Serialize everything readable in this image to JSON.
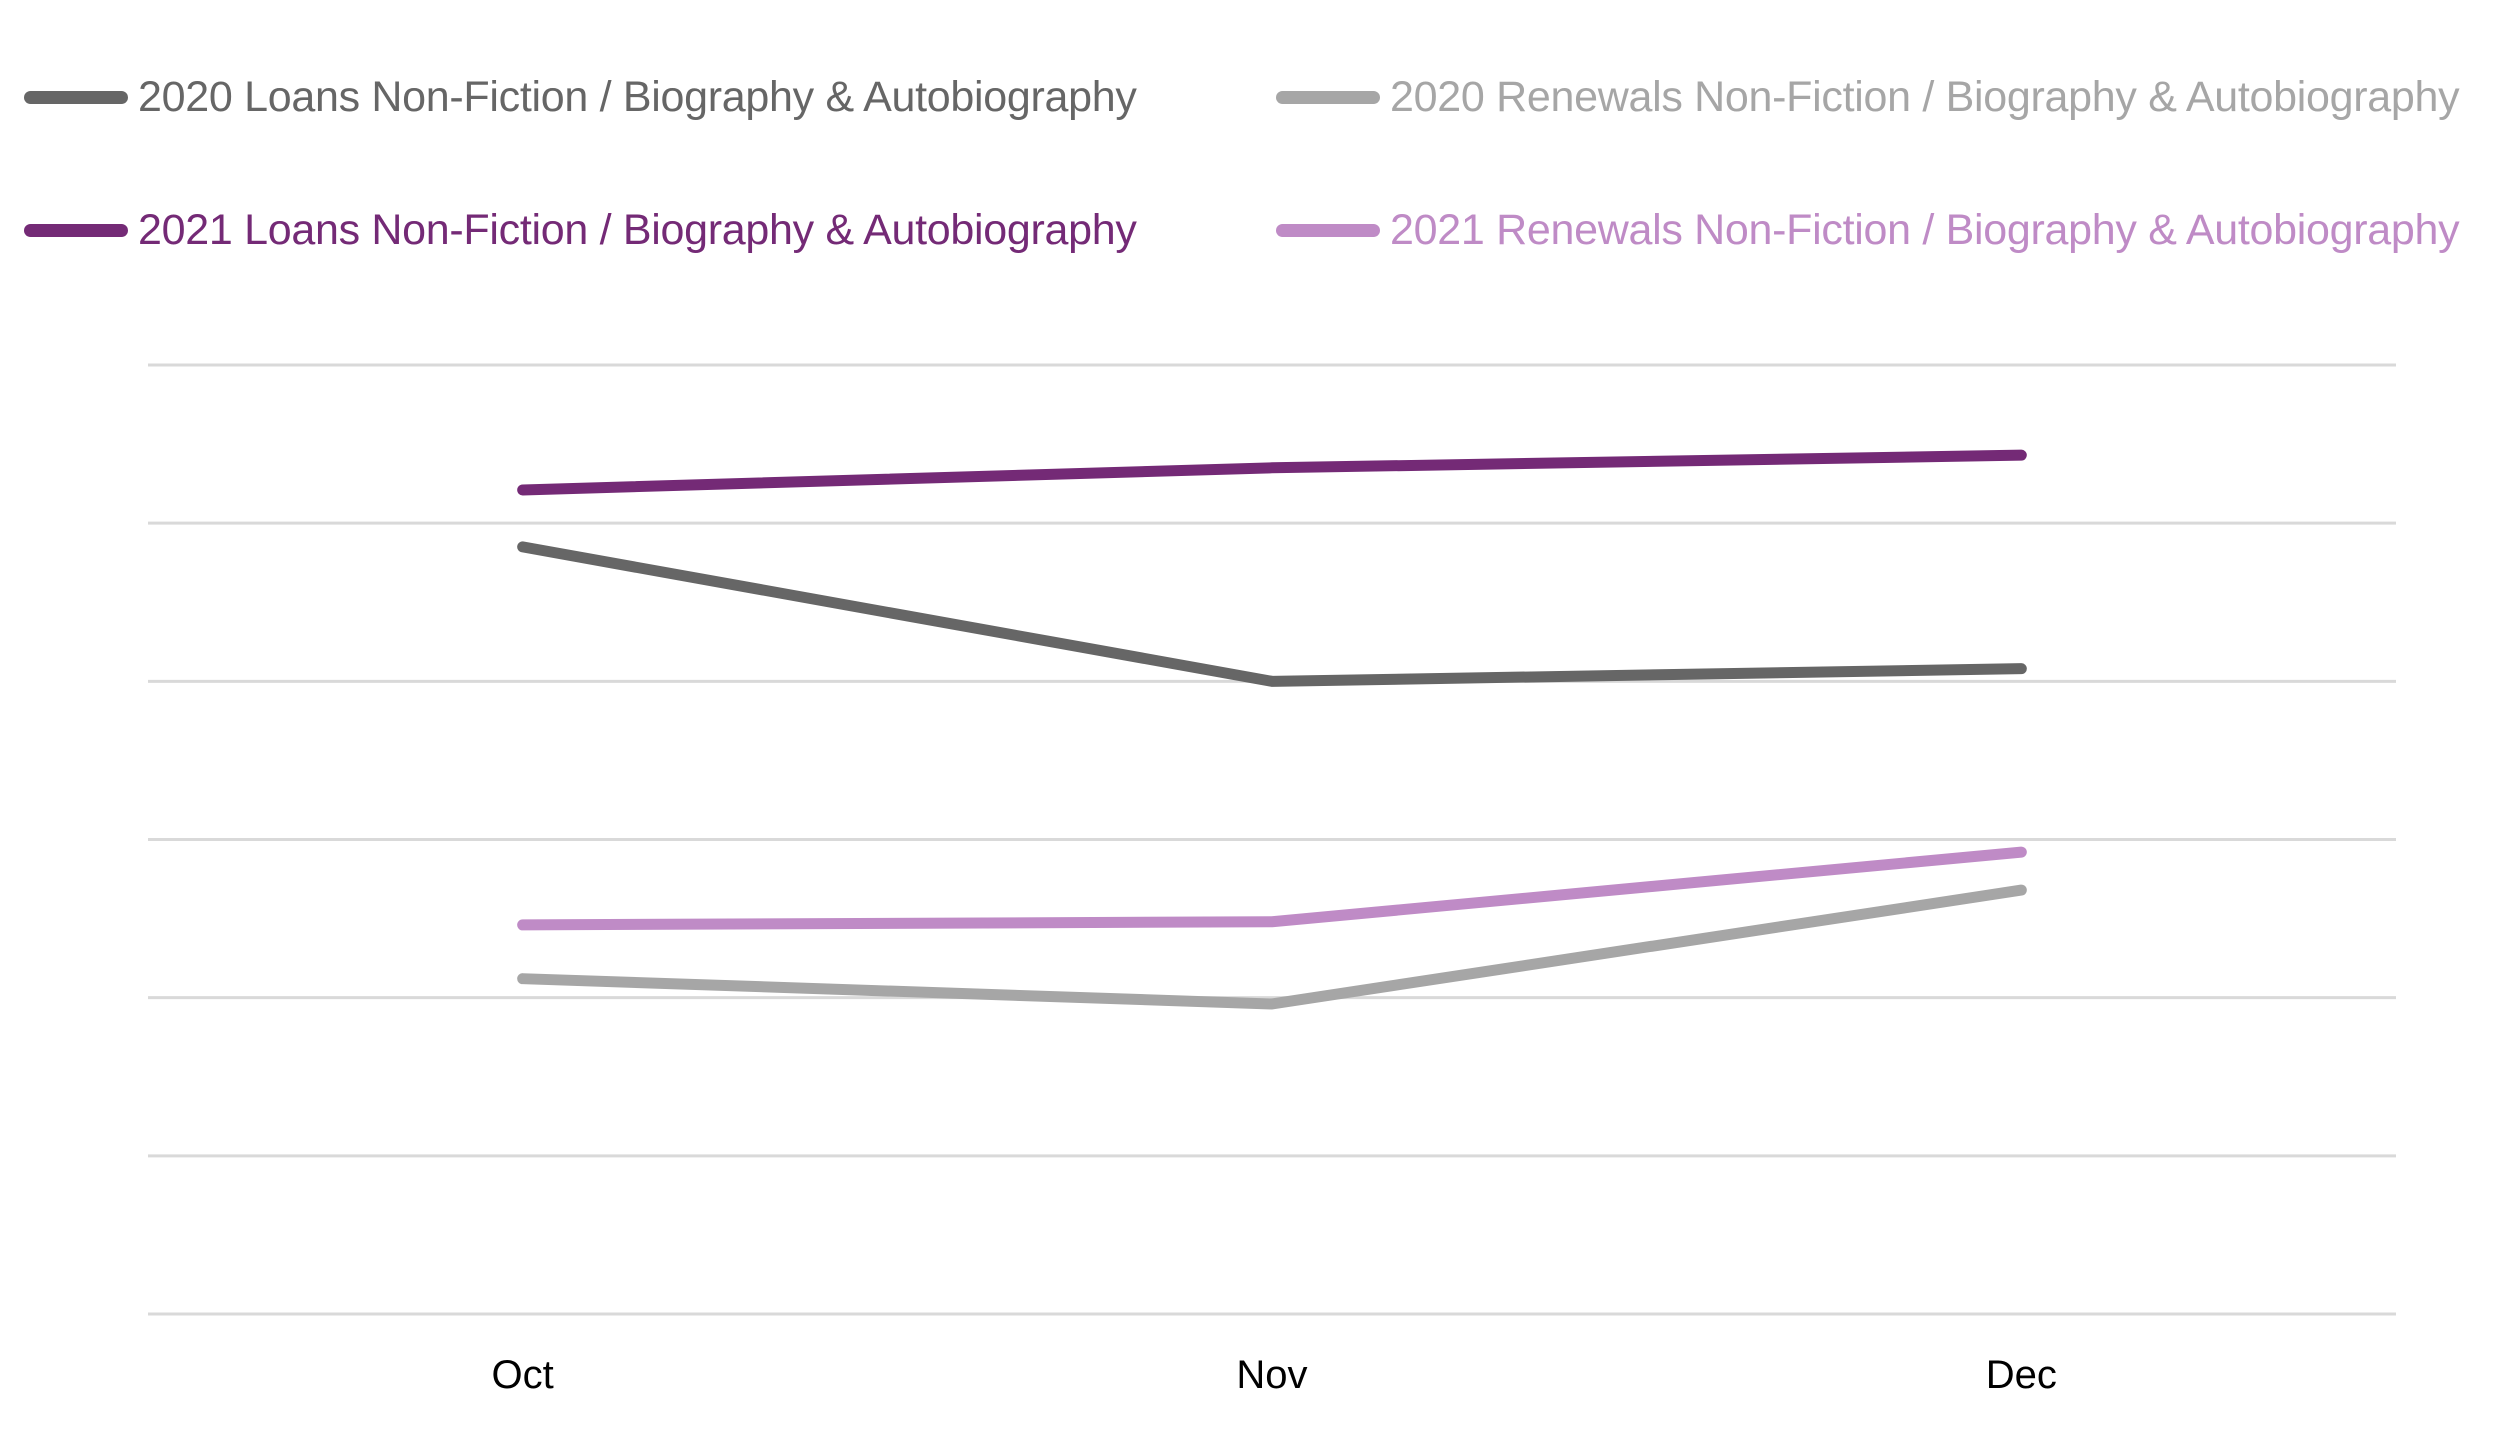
{
  "chart_data": {
    "type": "line",
    "title": "",
    "xlabel": "",
    "ylabel": "",
    "categories": [
      "Oct",
      "Nov",
      "Dec"
    ],
    "ylim": [
      0,
      6
    ],
    "grid": true,
    "gridlines": 7,
    "legend_position": "top",
    "series": [
      {
        "name": "2020 Loans Non-Fiction / Biography & Autobiography",
        "color": "#666666",
        "values": [
          4.85,
          4.0,
          4.08
        ]
      },
      {
        "name": "2020 Renewals Non-Fiction / Biography & Autobiography",
        "color": "#a6a6a6",
        "values": [
          2.12,
          1.96,
          2.68
        ]
      },
      {
        "name": "2021 Loans Non-Fiction / Biography & Autobiography",
        "color": "#742a76",
        "values": [
          5.21,
          5.35,
          5.43
        ]
      },
      {
        "name": "2021 Renewals Non-Fiction / Biography & Autobiography",
        "color": "#bf8bc6",
        "values": [
          2.46,
          2.48,
          2.92
        ]
      }
    ]
  }
}
